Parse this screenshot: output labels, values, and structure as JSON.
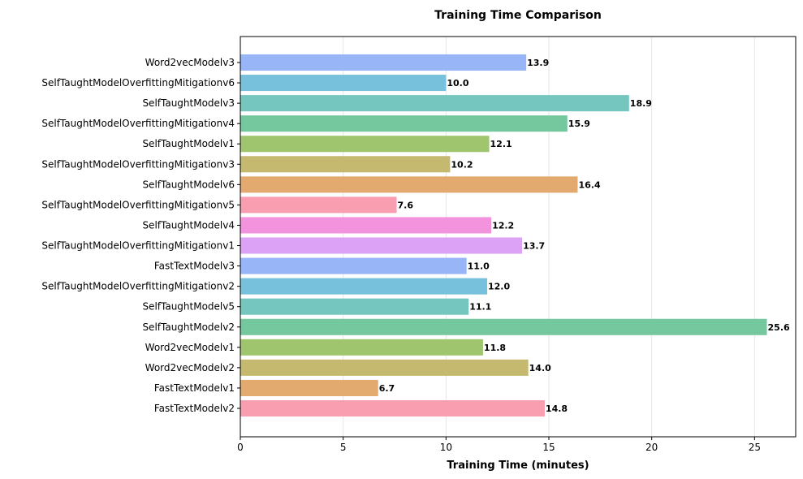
{
  "chart_data": {
    "type": "bar",
    "orientation": "horizontal",
    "title": "Training Time Comparison",
    "xlabel": "Training Time (minutes)",
    "ylabel": "",
    "xlim": [
      0,
      27
    ],
    "xticks": [
      0,
      5,
      10,
      15,
      20,
      25
    ],
    "grid": "x",
    "categories": [
      "Word2vecModelv3",
      "SelfTaughtModelOverfittingMitigationv6",
      "SelfTaughtModelv3",
      "SelfTaughtModelOverfittingMitigationv4",
      "SelfTaughtModelv1",
      "SelfTaughtModelOverfittingMitigationv3",
      "SelfTaughtModelv6",
      "SelfTaughtModelOverfittingMitigationv5",
      "SelfTaughtModelv4",
      "SelfTaughtModelOverfittingMitigationv1",
      "FastTextModelv3",
      "SelfTaughtModelOverfittingMitigationv2",
      "SelfTaughtModelv5",
      "SelfTaughtModelv2",
      "Word2vecModelv1",
      "Word2vecModelv2",
      "FastTextModelv1",
      "FastTextModelv2"
    ],
    "values": [
      13.9,
      10.0,
      18.9,
      15.9,
      12.1,
      10.2,
      16.4,
      7.6,
      12.2,
      13.7,
      11.0,
      12.0,
      11.1,
      25.6,
      11.8,
      14.0,
      6.7,
      14.8
    ],
    "value_labels": [
      "13.9",
      "10.0",
      "18.9",
      "15.9",
      "12.1",
      "10.2",
      "16.4",
      "7.6",
      "12.2",
      "13.7",
      "11.0",
      "12.0",
      "11.1",
      "25.6",
      "11.8",
      "14.0",
      "6.7",
      "14.8"
    ],
    "colors": [
      "#97b5f7",
      "#77c1dc",
      "#75c6bf",
      "#75c79e",
      "#9fc56f",
      "#c5b96f",
      "#e3aa6f",
      "#f99db0",
      "#f393de",
      "#dba2f5",
      "#97b5f7",
      "#77c1dc",
      "#75c6bf",
      "#75c79e",
      "#9fc56f",
      "#c5b96f",
      "#e3aa6f",
      "#f99db0"
    ]
  }
}
